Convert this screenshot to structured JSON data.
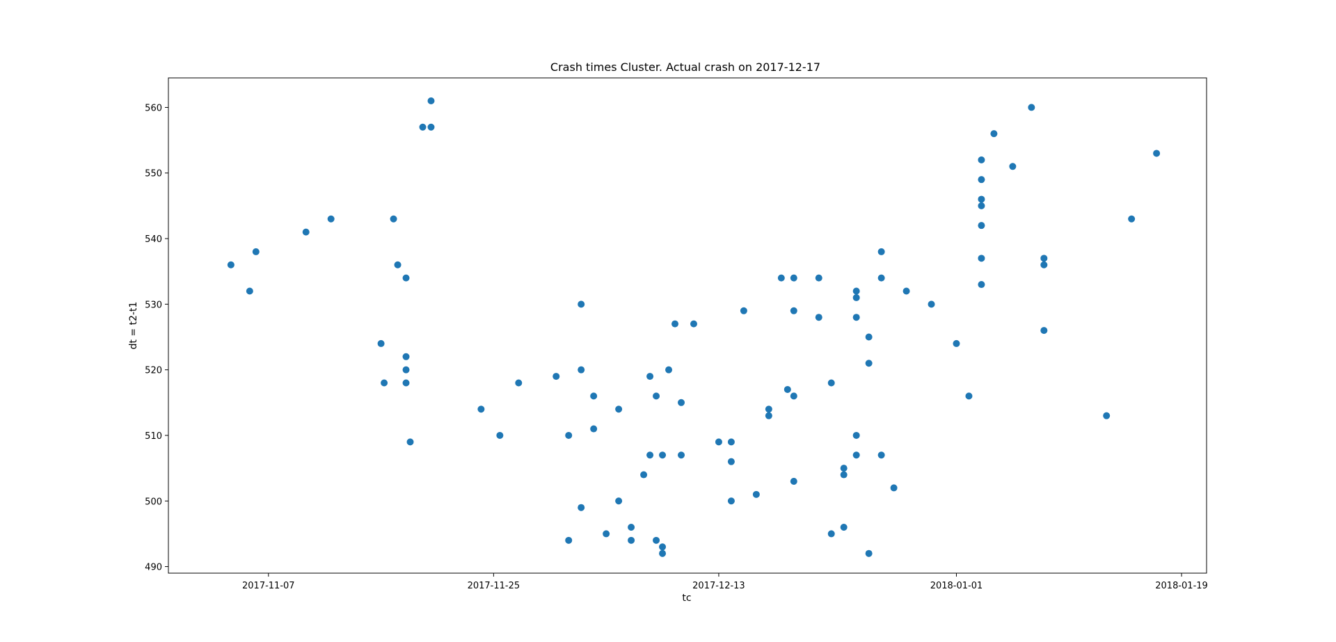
{
  "chart_data": {
    "type": "scatter",
    "title": "Crash times Cluster. Actual crash on 2017-12-17",
    "xlabel": "tc",
    "ylabel": "dt = t2-t1",
    "x_scale": "date",
    "xlim": [
      "2017-10-30",
      "2018-01-21"
    ],
    "ylim": [
      489,
      564.5
    ],
    "x_ticks": [
      "2017-11-07",
      "2017-11-25",
      "2017-12-13",
      "2018-01-01",
      "2018-01-19"
    ],
    "y_ticks": [
      490,
      500,
      510,
      520,
      530,
      540,
      550,
      560
    ],
    "grid": false,
    "legend": "none",
    "marker_color": "#1f77b4",
    "points": [
      {
        "x": "2017-11-04",
        "y": 536
      },
      {
        "x": "2017-11-05T12:00",
        "y": 532
      },
      {
        "x": "2017-11-06",
        "y": 538
      },
      {
        "x": "2017-11-10",
        "y": 541
      },
      {
        "x": "2017-11-12",
        "y": 543
      },
      {
        "x": "2017-11-16",
        "y": 524
      },
      {
        "x": "2017-11-16T06:00",
        "y": 518
      },
      {
        "x": "2017-11-17",
        "y": 543
      },
      {
        "x": "2017-11-17T08:00",
        "y": 536
      },
      {
        "x": "2017-11-18",
        "y": 534
      },
      {
        "x": "2017-11-18",
        "y": 522
      },
      {
        "x": "2017-11-18",
        "y": 520
      },
      {
        "x": "2017-11-18",
        "y": 518
      },
      {
        "x": "2017-11-18T08:00",
        "y": 509
      },
      {
        "x": "2017-11-19T08:00",
        "y": 557
      },
      {
        "x": "2017-11-20",
        "y": 561
      },
      {
        "x": "2017-11-20",
        "y": 557
      },
      {
        "x": "2017-11-24",
        "y": 514
      },
      {
        "x": "2017-11-25T12:00",
        "y": 510
      },
      {
        "x": "2017-11-27",
        "y": 518
      },
      {
        "x": "2017-11-30",
        "y": 519
      },
      {
        "x": "2017-12-01",
        "y": 494
      },
      {
        "x": "2017-12-01",
        "y": 510
      },
      {
        "x": "2017-12-02",
        "y": 530
      },
      {
        "x": "2017-12-02",
        "y": 520
      },
      {
        "x": "2017-12-02",
        "y": 499
      },
      {
        "x": "2017-12-03",
        "y": 511
      },
      {
        "x": "2017-12-03",
        "y": 516
      },
      {
        "x": "2017-12-04",
        "y": 495
      },
      {
        "x": "2017-12-05",
        "y": 514
      },
      {
        "x": "2017-12-05",
        "y": 500
      },
      {
        "x": "2017-12-06",
        "y": 496
      },
      {
        "x": "2017-12-06",
        "y": 494
      },
      {
        "x": "2017-12-07",
        "y": 504
      },
      {
        "x": "2017-12-07T12:00",
        "y": 519
      },
      {
        "x": "2017-12-07T12:00",
        "y": 507
      },
      {
        "x": "2017-12-08",
        "y": 516
      },
      {
        "x": "2017-12-08",
        "y": 494
      },
      {
        "x": "2017-12-08T12:00",
        "y": 493
      },
      {
        "x": "2017-12-08T12:00",
        "y": 507
      },
      {
        "x": "2017-12-08T12:00",
        "y": 492
      },
      {
        "x": "2017-12-09",
        "y": 520
      },
      {
        "x": "2017-12-09T12:00",
        "y": 527
      },
      {
        "x": "2017-12-10",
        "y": 515
      },
      {
        "x": "2017-12-10",
        "y": 507
      },
      {
        "x": "2017-12-11",
        "y": 527
      },
      {
        "x": "2017-12-13",
        "y": 509
      },
      {
        "x": "2017-12-14",
        "y": 509
      },
      {
        "x": "2017-12-14",
        "y": 506
      },
      {
        "x": "2017-12-14",
        "y": 500
      },
      {
        "x": "2017-12-15",
        "y": 529
      },
      {
        "x": "2017-12-16",
        "y": 501
      },
      {
        "x": "2017-12-17",
        "y": 514
      },
      {
        "x": "2017-12-17",
        "y": 513
      },
      {
        "x": "2017-12-18",
        "y": 534
      },
      {
        "x": "2017-12-18T12:00",
        "y": 517
      },
      {
        "x": "2017-12-19",
        "y": 516
      },
      {
        "x": "2017-12-19",
        "y": 503
      },
      {
        "x": "2017-12-19",
        "y": 534
      },
      {
        "x": "2017-12-19",
        "y": 529
      },
      {
        "x": "2017-12-21",
        "y": 528
      },
      {
        "x": "2017-12-21",
        "y": 534
      },
      {
        "x": "2017-12-22",
        "y": 518
      },
      {
        "x": "2017-12-22",
        "y": 495
      },
      {
        "x": "2017-12-23",
        "y": 505
      },
      {
        "x": "2017-12-23",
        "y": 504
      },
      {
        "x": "2017-12-23",
        "y": 496
      },
      {
        "x": "2017-12-24",
        "y": 531
      },
      {
        "x": "2017-12-24",
        "y": 528
      },
      {
        "x": "2017-12-24",
        "y": 532
      },
      {
        "x": "2017-12-24",
        "y": 510
      },
      {
        "x": "2017-12-24",
        "y": 507
      },
      {
        "x": "2017-12-25",
        "y": 525
      },
      {
        "x": "2017-12-25",
        "y": 521
      },
      {
        "x": "2017-12-25",
        "y": 492
      },
      {
        "x": "2017-12-26",
        "y": 507
      },
      {
        "x": "2017-12-26",
        "y": 534
      },
      {
        "x": "2017-12-26",
        "y": 538
      },
      {
        "x": "2017-12-27",
        "y": 502
      },
      {
        "x": "2017-12-28",
        "y": 532
      },
      {
        "x": "2017-12-30",
        "y": 530
      },
      {
        "x": "2018-01-01",
        "y": 524
      },
      {
        "x": "2018-01-02",
        "y": 516
      },
      {
        "x": "2018-01-03",
        "y": 552
      },
      {
        "x": "2018-01-03",
        "y": 549
      },
      {
        "x": "2018-01-03",
        "y": 546
      },
      {
        "x": "2018-01-03",
        "y": 545
      },
      {
        "x": "2018-01-03",
        "y": 542
      },
      {
        "x": "2018-01-03",
        "y": 537
      },
      {
        "x": "2018-01-03",
        "y": 533
      },
      {
        "x": "2018-01-04",
        "y": 556
      },
      {
        "x": "2018-01-05T12:00",
        "y": 551
      },
      {
        "x": "2018-01-07",
        "y": 560
      },
      {
        "x": "2018-01-08",
        "y": 537
      },
      {
        "x": "2018-01-08",
        "y": 536
      },
      {
        "x": "2018-01-08",
        "y": 526
      },
      {
        "x": "2018-01-13",
        "y": 513
      },
      {
        "x": "2018-01-15",
        "y": 543
      },
      {
        "x": "2018-01-17",
        "y": 553
      }
    ]
  }
}
